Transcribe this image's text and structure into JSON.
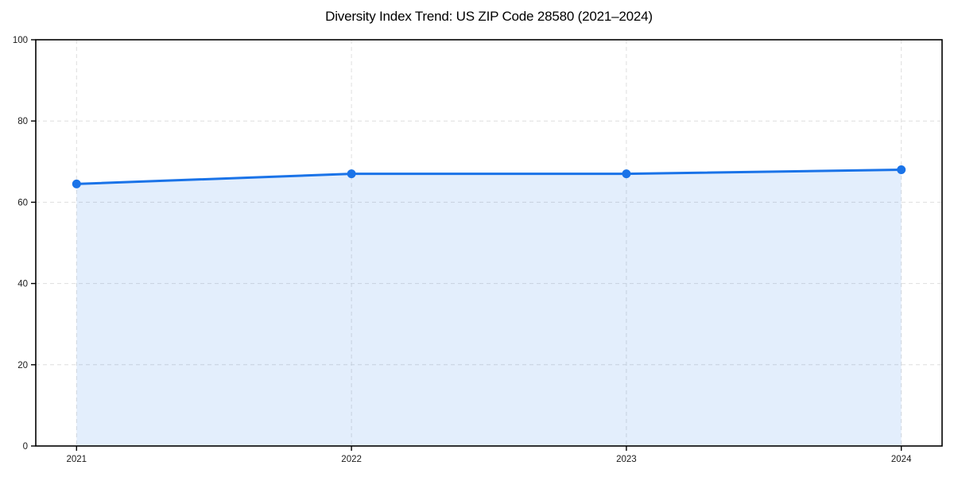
{
  "title": "Diversity Index Trend: US ZIP Code 28580 (2021–2024)",
  "chart_data": {
    "type": "area",
    "title": "Diversity Index Trend: US ZIP Code 28580 (2021–2024)",
    "series_name": "Diversity Index",
    "x": [
      "2021",
      "2022",
      "2023",
      "2024"
    ],
    "values": [
      64.5,
      67,
      67,
      68
    ],
    "xlabel": "",
    "ylabel": "",
    "ylim": [
      0,
      100
    ],
    "yticks": [
      0,
      20,
      40,
      60,
      80,
      100
    ],
    "grid": "dashed",
    "legend": "none",
    "marker": "circle",
    "spines": "full-box"
  },
  "colors": {
    "line": "#1a73e8",
    "marker": "#1a73e8",
    "fill": "#1a73e8",
    "fill_opacity": 0.12,
    "grid": "#dedede",
    "spine": "#000000",
    "tick_text": "#1a1a1a",
    "title_text": "#000000",
    "background": "#ffffff"
  }
}
